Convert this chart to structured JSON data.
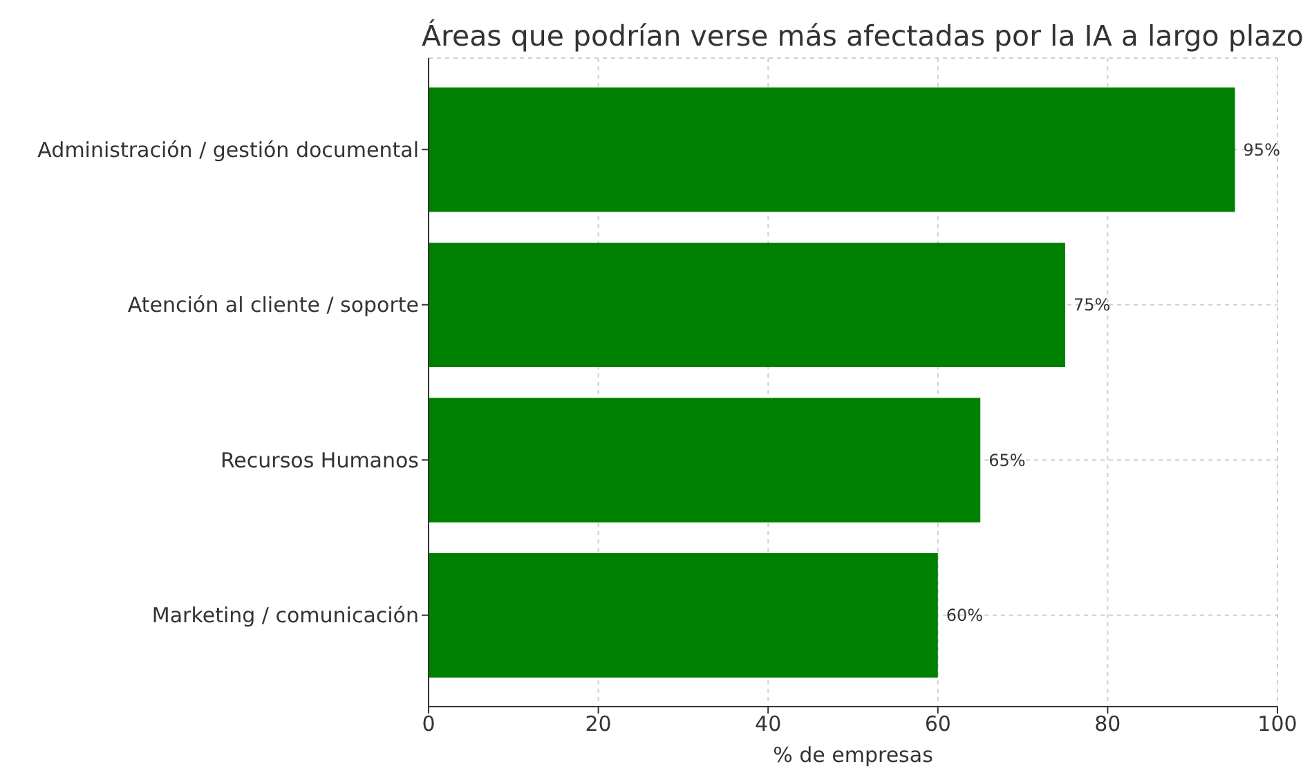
{
  "chart_data": {
    "type": "bar",
    "orientation": "horizontal",
    "title": "Áreas que podrían verse más afectadas por la IA a largo plazo",
    "xlabel": "% de empresas",
    "categories": [
      "Administración / gestión documental",
      "Atención al cliente / soporte",
      "Recursos Humanos",
      "Marketing / comunicación"
    ],
    "values": [
      95,
      75,
      65,
      60
    ],
    "color": "#008000",
    "value_labels": [
      "95%",
      "75%",
      "65%",
      "60%"
    ],
    "xlim": [
      0,
      100
    ],
    "xticks": [
      0,
      20,
      40,
      60,
      80,
      100
    ],
    "grid": true
  }
}
